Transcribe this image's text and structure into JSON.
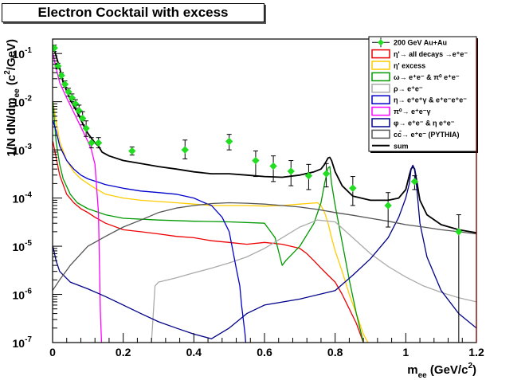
{
  "chart_data": {
    "type": "line",
    "title": "Electron Cocktail with excess",
    "xlabel": "m_ee (GeV/c²)",
    "ylabel": "1/N dN/dm_ee (c²/GeV)",
    "xlim": [
      0,
      1.2
    ],
    "ylim": [
      1e-07,
      0.2
    ],
    "yscale": "log",
    "x_ticks": [
      "0",
      "0.2",
      "0.4",
      "0.6",
      "0.8",
      "1",
      "1.2"
    ],
    "y_ticks": [
      {
        "base": "10",
        "exp": "-1",
        "value": 0.1
      },
      {
        "base": "10",
        "exp": "-2",
        "value": 0.01
      },
      {
        "base": "10",
        "exp": "-3",
        "value": 0.001
      },
      {
        "base": "10",
        "exp": "-4",
        "value": 0.0001
      },
      {
        "base": "10",
        "exp": "-5",
        "value": 1e-05
      },
      {
        "base": "10",
        "exp": "-6",
        "value": 1e-06
      },
      {
        "base": "10",
        "exp": "-7",
        "value": 1e-07
      }
    ],
    "legend_position": "top-right",
    "legend": [
      {
        "label": "200 GeV Au+Au",
        "color": "#22dd22",
        "kind": "marker"
      },
      {
        "label": "η'→ all decays →e⁺e⁻",
        "color": "#ee0000",
        "kind": "box"
      },
      {
        "label": "η' excess",
        "color": "#ffcc00",
        "kind": "box"
      },
      {
        "label": "ω→ e⁺e⁻ & π⁰ e⁺e⁻",
        "color": "#009900",
        "kind": "box"
      },
      {
        "label": "ρ→ e⁺e⁻",
        "color": "#aaaaaa",
        "kind": "box"
      },
      {
        "label": "η→ e⁺e⁺γ & e⁺e⁻e⁺e⁻",
        "color": "#0000cc",
        "kind": "box"
      },
      {
        "label": "π⁰→ e⁺e⁻γ",
        "color": "#ff00ff",
        "kind": "box"
      },
      {
        "label": "φ→ e⁺e⁻ & η e⁺e⁻",
        "color": "#000088",
        "kind": "box"
      },
      {
        "label": "cc̄→ e⁺e⁻ (PYTHIA)",
        "color": "#555555",
        "kind": "box"
      },
      {
        "label": "sum",
        "color": "#000000",
        "kind": "line"
      }
    ],
    "data_points": {
      "name": "200 GeV Au+Au",
      "color": "#22dd22",
      "points": [
        {
          "x": 0.005,
          "y": 0.13,
          "lo": 0.11,
          "hi": 0.15
        },
        {
          "x": 0.015,
          "y": 0.055,
          "lo": 0.048,
          "hi": 0.063
        },
        {
          "x": 0.025,
          "y": 0.035,
          "lo": 0.03,
          "hi": 0.04
        },
        {
          "x": 0.035,
          "y": 0.023,
          "lo": 0.02,
          "hi": 0.027
        },
        {
          "x": 0.045,
          "y": 0.016,
          "lo": 0.013,
          "hi": 0.019
        },
        {
          "x": 0.055,
          "y": 0.012,
          "lo": 0.01,
          "hi": 0.0145
        },
        {
          "x": 0.065,
          "y": 0.009,
          "lo": 0.0073,
          "hi": 0.011
        },
        {
          "x": 0.075,
          "y": 0.0065,
          "lo": 0.005,
          "hi": 0.0085
        },
        {
          "x": 0.085,
          "y": 0.0045,
          "lo": 0.0033,
          "hi": 0.0062
        },
        {
          "x": 0.095,
          "y": 0.0028,
          "lo": 0.0019,
          "hi": 0.004
        },
        {
          "x": 0.11,
          "y": 0.0014,
          "lo": 0.0011,
          "hi": 0.0018
        },
        {
          "x": 0.13,
          "y": 0.0014,
          "lo": 0.0011,
          "hi": 0.0018
        },
        {
          "x": 0.225,
          "y": 0.00095,
          "lo": 0.00078,
          "hi": 0.00115
        },
        {
          "x": 0.375,
          "y": 0.001,
          "lo": 0.00065,
          "hi": 0.0016
        },
        {
          "x": 0.5,
          "y": 0.0015,
          "lo": 0.001,
          "hi": 0.0021
        },
        {
          "x": 0.575,
          "y": 0.0006,
          "lo": 0.00028,
          "hi": 0.00095
        },
        {
          "x": 0.625,
          "y": 0.00046,
          "lo": 0.00022,
          "hi": 0.00075
        },
        {
          "x": 0.675,
          "y": 0.00036,
          "lo": 0.00018,
          "hi": 0.0006
        },
        {
          "x": 0.725,
          "y": 0.00029,
          "lo": 0.00015,
          "hi": 0.0005
        },
        {
          "x": 0.775,
          "y": 0.00032,
          "lo": 0.00017,
          "hi": 0.00052
        },
        {
          "x": 0.85,
          "y": 0.00016,
          "lo": 7e-05,
          "hi": 0.00028
        },
        {
          "x": 0.95,
          "y": 7e-05,
          "lo": 2.5e-05,
          "hi": 0.00013
        },
        {
          "x": 1.025,
          "y": 0.00022,
          "lo": 0.00015,
          "hi": 0.00029
        },
        {
          "x": 1.15,
          "y": 2e-05,
          "lo": 1e-07,
          "hi": 4.5e-05
        }
      ]
    },
    "series": [
      {
        "name": "sum",
        "color": "#000000",
        "width": 1.8,
        "x": [
          0.001,
          0.01,
          0.02,
          0.03,
          0.05,
          0.07,
          0.09,
          0.1,
          0.12,
          0.13,
          0.14,
          0.16,
          0.2,
          0.25,
          0.3,
          0.35,
          0.4,
          0.45,
          0.5,
          0.55,
          0.6,
          0.65,
          0.7,
          0.74,
          0.76,
          0.77,
          0.78,
          0.785,
          0.79,
          0.8,
          0.82,
          0.85,
          0.9,
          0.95,
          0.98,
          1.0,
          1.01,
          1.015,
          1.02,
          1.025,
          1.03,
          1.04,
          1.06,
          1.1,
          1.15,
          1.2
        ],
        "y": [
          0.15,
          0.09,
          0.05,
          0.025,
          0.011,
          0.006,
          0.003,
          0.0022,
          0.0014,
          0.0012,
          0.0009,
          0.00075,
          0.0006,
          0.00052,
          0.00045,
          0.0004,
          0.00035,
          0.00032,
          0.00032,
          0.0003,
          0.00028,
          0.00027,
          0.0003,
          0.00035,
          0.0004,
          0.0005,
          0.00068,
          0.0007,
          0.0006,
          0.00035,
          0.00018,
          0.00011,
          9e-05,
          9e-05,
          0.0001,
          0.00015,
          0.0003,
          0.0004,
          0.00045,
          0.0004,
          0.00025,
          9e-05,
          4.5e-05,
          2.8e-05,
          2.2e-05,
          1.9e-05
        ]
      },
      {
        "name": "η'→ all decays →e⁺e⁻",
        "color": "#ee0000",
        "width": 1.3,
        "x": [
          0.001,
          0.01,
          0.02,
          0.04,
          0.06,
          0.08,
          0.1,
          0.12,
          0.15,
          0.2,
          0.25,
          0.3,
          0.35,
          0.4,
          0.45,
          0.5,
          0.55,
          0.6,
          0.65,
          0.7,
          0.72,
          0.74,
          0.76,
          0.78,
          0.8,
          0.82,
          0.84,
          0.86,
          0.88,
          0.9
        ],
        "y": [
          0.0015,
          0.0007,
          0.0003,
          0.00012,
          8e-05,
          6e-05,
          5e-05,
          4e-05,
          3e-05,
          2.2e-05,
          2e-05,
          1.8e-05,
          1.6e-05,
          1.5e-05,
          1.3e-05,
          1.2e-05,
          1.1e-05,
          1.2e-05,
          1.1e-05,
          9e-06,
          7e-06,
          5e-06,
          3.5e-06,
          2.5e-06,
          1.8e-06,
          1e-06,
          5e-07,
          2.5e-07,
          1e-07,
          5e-08
        ]
      },
      {
        "name": "η' excess",
        "color": "#ffcc00",
        "width": 1.3,
        "x": [
          0.001,
          0.01,
          0.02,
          0.04,
          0.06,
          0.08,
          0.1,
          0.12,
          0.15,
          0.2,
          0.25,
          0.3,
          0.35,
          0.4,
          0.45,
          0.5,
          0.55,
          0.6,
          0.65,
          0.7,
          0.75,
          0.76,
          0.77,
          0.78,
          0.79,
          0.8,
          0.82,
          0.84,
          0.86,
          0.88,
          0.9
        ],
        "y": [
          0.01,
          0.004,
          0.0015,
          0.0006,
          0.00035,
          0.00025,
          0.0002,
          0.00016,
          0.00012,
          0.0001,
          9e-05,
          8.5e-05,
          8e-05,
          7.5e-05,
          7e-05,
          7e-05,
          7e-05,
          6.8e-05,
          7e-05,
          7.5e-05,
          8e-05,
          7e-05,
          5e-05,
          3e-05,
          1.5e-05,
          8e-06,
          3e-06,
          1e-06,
          4e-07,
          1.5e-07,
          8e-08
        ]
      },
      {
        "name": "ω→ e⁺e⁻ & π⁰ e⁺e⁻",
        "color": "#009900",
        "width": 1.3,
        "x": [
          0.001,
          0.01,
          0.02,
          0.03,
          0.05,
          0.07,
          0.1,
          0.15,
          0.2,
          0.3,
          0.4,
          0.5,
          0.6,
          0.63,
          0.65,
          0.66,
          0.7,
          0.74,
          0.76,
          0.77,
          0.78,
          0.785,
          0.79,
          0.8,
          0.82,
          0.84,
          0.86,
          0.88
        ],
        "y": [
          0.01,
          0.0015,
          0.0005,
          0.00025,
          0.00012,
          8e-05,
          6e-05,
          4.5e-05,
          3.8e-05,
          3.5e-05,
          3.3e-05,
          3.2e-05,
          3e-05,
          1.5e-05,
          4e-06,
          5e-06,
          1e-05,
          3e-05,
          8e-05,
          0.0002,
          0.00042,
          0.00045,
          0.0002,
          7e-05,
          1.2e-05,
          2e-06,
          4e-07,
          1e-07
        ]
      },
      {
        "name": "ρ→ e⁺e⁻",
        "color": "#aaaaaa",
        "width": 1.3,
        "x": [
          0.28,
          0.29,
          0.3,
          0.35,
          0.4,
          0.45,
          0.5,
          0.55,
          0.6,
          0.65,
          0.7,
          0.75,
          0.8,
          0.85,
          0.9,
          0.95,
          1.0,
          1.05,
          1.1,
          1.15,
          1.2
        ],
        "y": [
          1e-07,
          1.5e-06,
          1.8e-06,
          2.2e-06,
          2.8e-06,
          3.5e-06,
          4.5e-06,
          6e-06,
          9e-06,
          1.5e-05,
          2.5e-05,
          3.5e-05,
          3.2e-05,
          1.5e-05,
          7e-06,
          3.8e-06,
          2.3e-06,
          1.5e-06,
          1.1e-06,
          8.5e-07,
          7e-07
        ]
      },
      {
        "name": "η→ e⁺e⁺γ & e⁺e⁻e⁺e⁻",
        "color": "#0000cc",
        "width": 1.3,
        "x": [
          0.001,
          0.01,
          0.02,
          0.04,
          0.06,
          0.08,
          0.1,
          0.15,
          0.2,
          0.25,
          0.3,
          0.35,
          0.4,
          0.43,
          0.45,
          0.48,
          0.5,
          0.52,
          0.53,
          0.535,
          0.54,
          0.545,
          0.55
        ],
        "y": [
          0.004,
          0.0025,
          0.0012,
          0.0006,
          0.0004,
          0.0003,
          0.00025,
          0.00019,
          0.00016,
          0.00014,
          0.00013,
          0.00012,
          0.0001,
          8e-05,
          7e-05,
          4e-05,
          2e-05,
          3.5e-06,
          1.5e-06,
          6e-07,
          3e-07,
          1.5e-07,
          5e-08
        ]
      },
      {
        "name": "π⁰→ e⁺e⁻γ",
        "color": "#ff00ff",
        "width": 1.3,
        "x": [
          0.001,
          0.01,
          0.02,
          0.04,
          0.06,
          0.08,
          0.1,
          0.11,
          0.12,
          0.13,
          0.135,
          0.14
        ],
        "y": [
          0.1,
          0.05,
          0.025,
          0.012,
          0.006,
          0.003,
          0.0015,
          0.001,
          0.0005,
          5e-05,
          5e-07,
          5e-08
        ]
      },
      {
        "name": "φ→ e⁺e⁻ & η e⁺e⁻",
        "color": "#000088",
        "width": 1.3,
        "x": [
          0.001,
          0.01,
          0.02,
          0.05,
          0.1,
          0.15,
          0.2,
          0.25,
          0.3,
          0.35,
          0.4,
          0.45,
          0.5,
          0.55,
          0.6,
          0.7,
          0.8,
          0.85,
          0.9,
          0.95,
          0.98,
          1.0,
          1.01,
          1.015,
          1.02,
          1.025,
          1.03,
          1.04,
          1.06,
          1.1,
          1.15,
          1.2
        ],
        "y": [
          1e-05,
          5e-06,
          3e-06,
          1.8e-06,
          1.3e-06,
          9e-07,
          6e-07,
          4e-07,
          2.7e-07,
          2e-07,
          1.5e-07,
          1.2e-07,
          2e-07,
          4e-07,
          6e-07,
          8e-07,
          1.2e-06,
          2.5e-06,
          5.5e-06,
          1.5e-05,
          4e-05,
          0.0001,
          0.0002,
          0.0004,
          0.00048,
          0.0004,
          0.0002,
          3e-05,
          6e-06,
          1.2e-06,
          4e-07,
          2e-07
        ]
      },
      {
        "name": "cc̄→ e⁺e⁻ (PYTHIA)",
        "color": "#555555",
        "width": 1.3,
        "x": [
          0.0,
          0.02,
          0.05,
          0.1,
          0.15,
          0.2,
          0.25,
          0.3,
          0.35,
          0.4,
          0.45,
          0.5,
          0.55,
          0.6,
          0.65,
          0.7,
          0.75,
          0.8,
          0.85,
          0.9,
          0.95,
          1.0,
          1.05,
          1.1,
          1.15,
          1.2
        ],
        "y": [
          1.2e-06,
          2e-06,
          4e-06,
          1e-05,
          1.6e-05,
          2.5e-05,
          3.5e-05,
          5e-05,
          6.2e-05,
          7e-05,
          7.7e-05,
          8e-05,
          7.8e-05,
          7.5e-05,
          7e-05,
          6.5e-05,
          5.8e-05,
          5e-05,
          4.4e-05,
          3.8e-05,
          3.3e-05,
          2.8e-05,
          2.5e-05,
          2.2e-05,
          2e-05,
          1.8e-05
        ]
      }
    ]
  }
}
